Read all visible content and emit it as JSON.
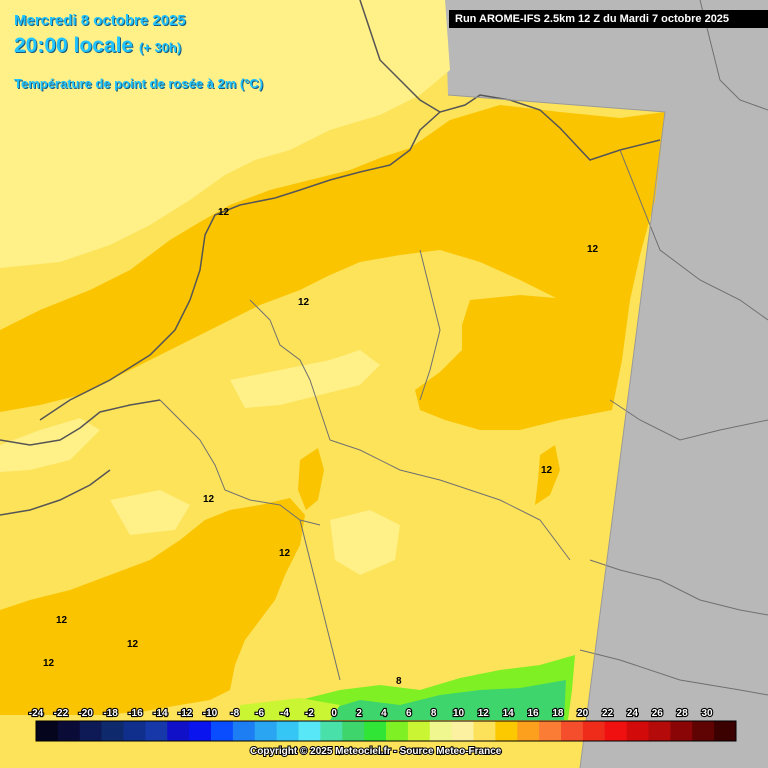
{
  "header": {
    "date": "Mercredi 8 octobre 2025",
    "time": "20:00 locale",
    "offset": "(+ 30h)",
    "parameter": "Température de point de rosée à 2m (°C)",
    "run": "Run AROME-IFS 2.5km 12 Z du Mardi 7 octobre 2025"
  },
  "map": {
    "contour_value_labels": [
      "12",
      "12",
      "12",
      "12",
      "12",
      "12",
      "12",
      "12",
      "12",
      "8"
    ],
    "colors": {
      "outside_domain": "#b8b8b8",
      "band_8_10": "#fff087",
      "band_10_12": "#fde35a",
      "band_12_14": "#fbc400",
      "band_14_16": "#d6ec2a",
      "band_16_18": "#60d84a"
    }
  },
  "legend": {
    "tick_labels": [
      "-24",
      "-22",
      "-20",
      "-18",
      "-16",
      "-14",
      "-12",
      "-10",
      "-8",
      "-6",
      "-4",
      "-2",
      "0",
      "2",
      "4",
      "6",
      "8",
      "10",
      "12",
      "14",
      "16",
      "18",
      "20",
      "22",
      "24",
      "26",
      "28",
      "30"
    ],
    "colors": [
      "#05051e",
      "#0b0b37",
      "#0d1a55",
      "#0f2a6c",
      "#102f8c",
      "#1638a8",
      "#0f10c8",
      "#0a14ef",
      "#0a4dff",
      "#1d7ef3",
      "#2aa5f2",
      "#35c6f5",
      "#57e7f7",
      "#49e0a9",
      "#3fd56d",
      "#31e537",
      "#7ef023",
      "#c9f533",
      "#f1f78f",
      "#fcf1a0",
      "#fbe25a",
      "#fcc901",
      "#fca01e",
      "#fa7c35",
      "#f44e2c",
      "#ef2b1a",
      "#f01010",
      "#d20a0a",
      "#b40a0a",
      "#8a0606",
      "#5f0303",
      "#3b0000"
    ],
    "copyright": "Copyright © 2025 Meteociel.fr - Source Meteo-France"
  }
}
